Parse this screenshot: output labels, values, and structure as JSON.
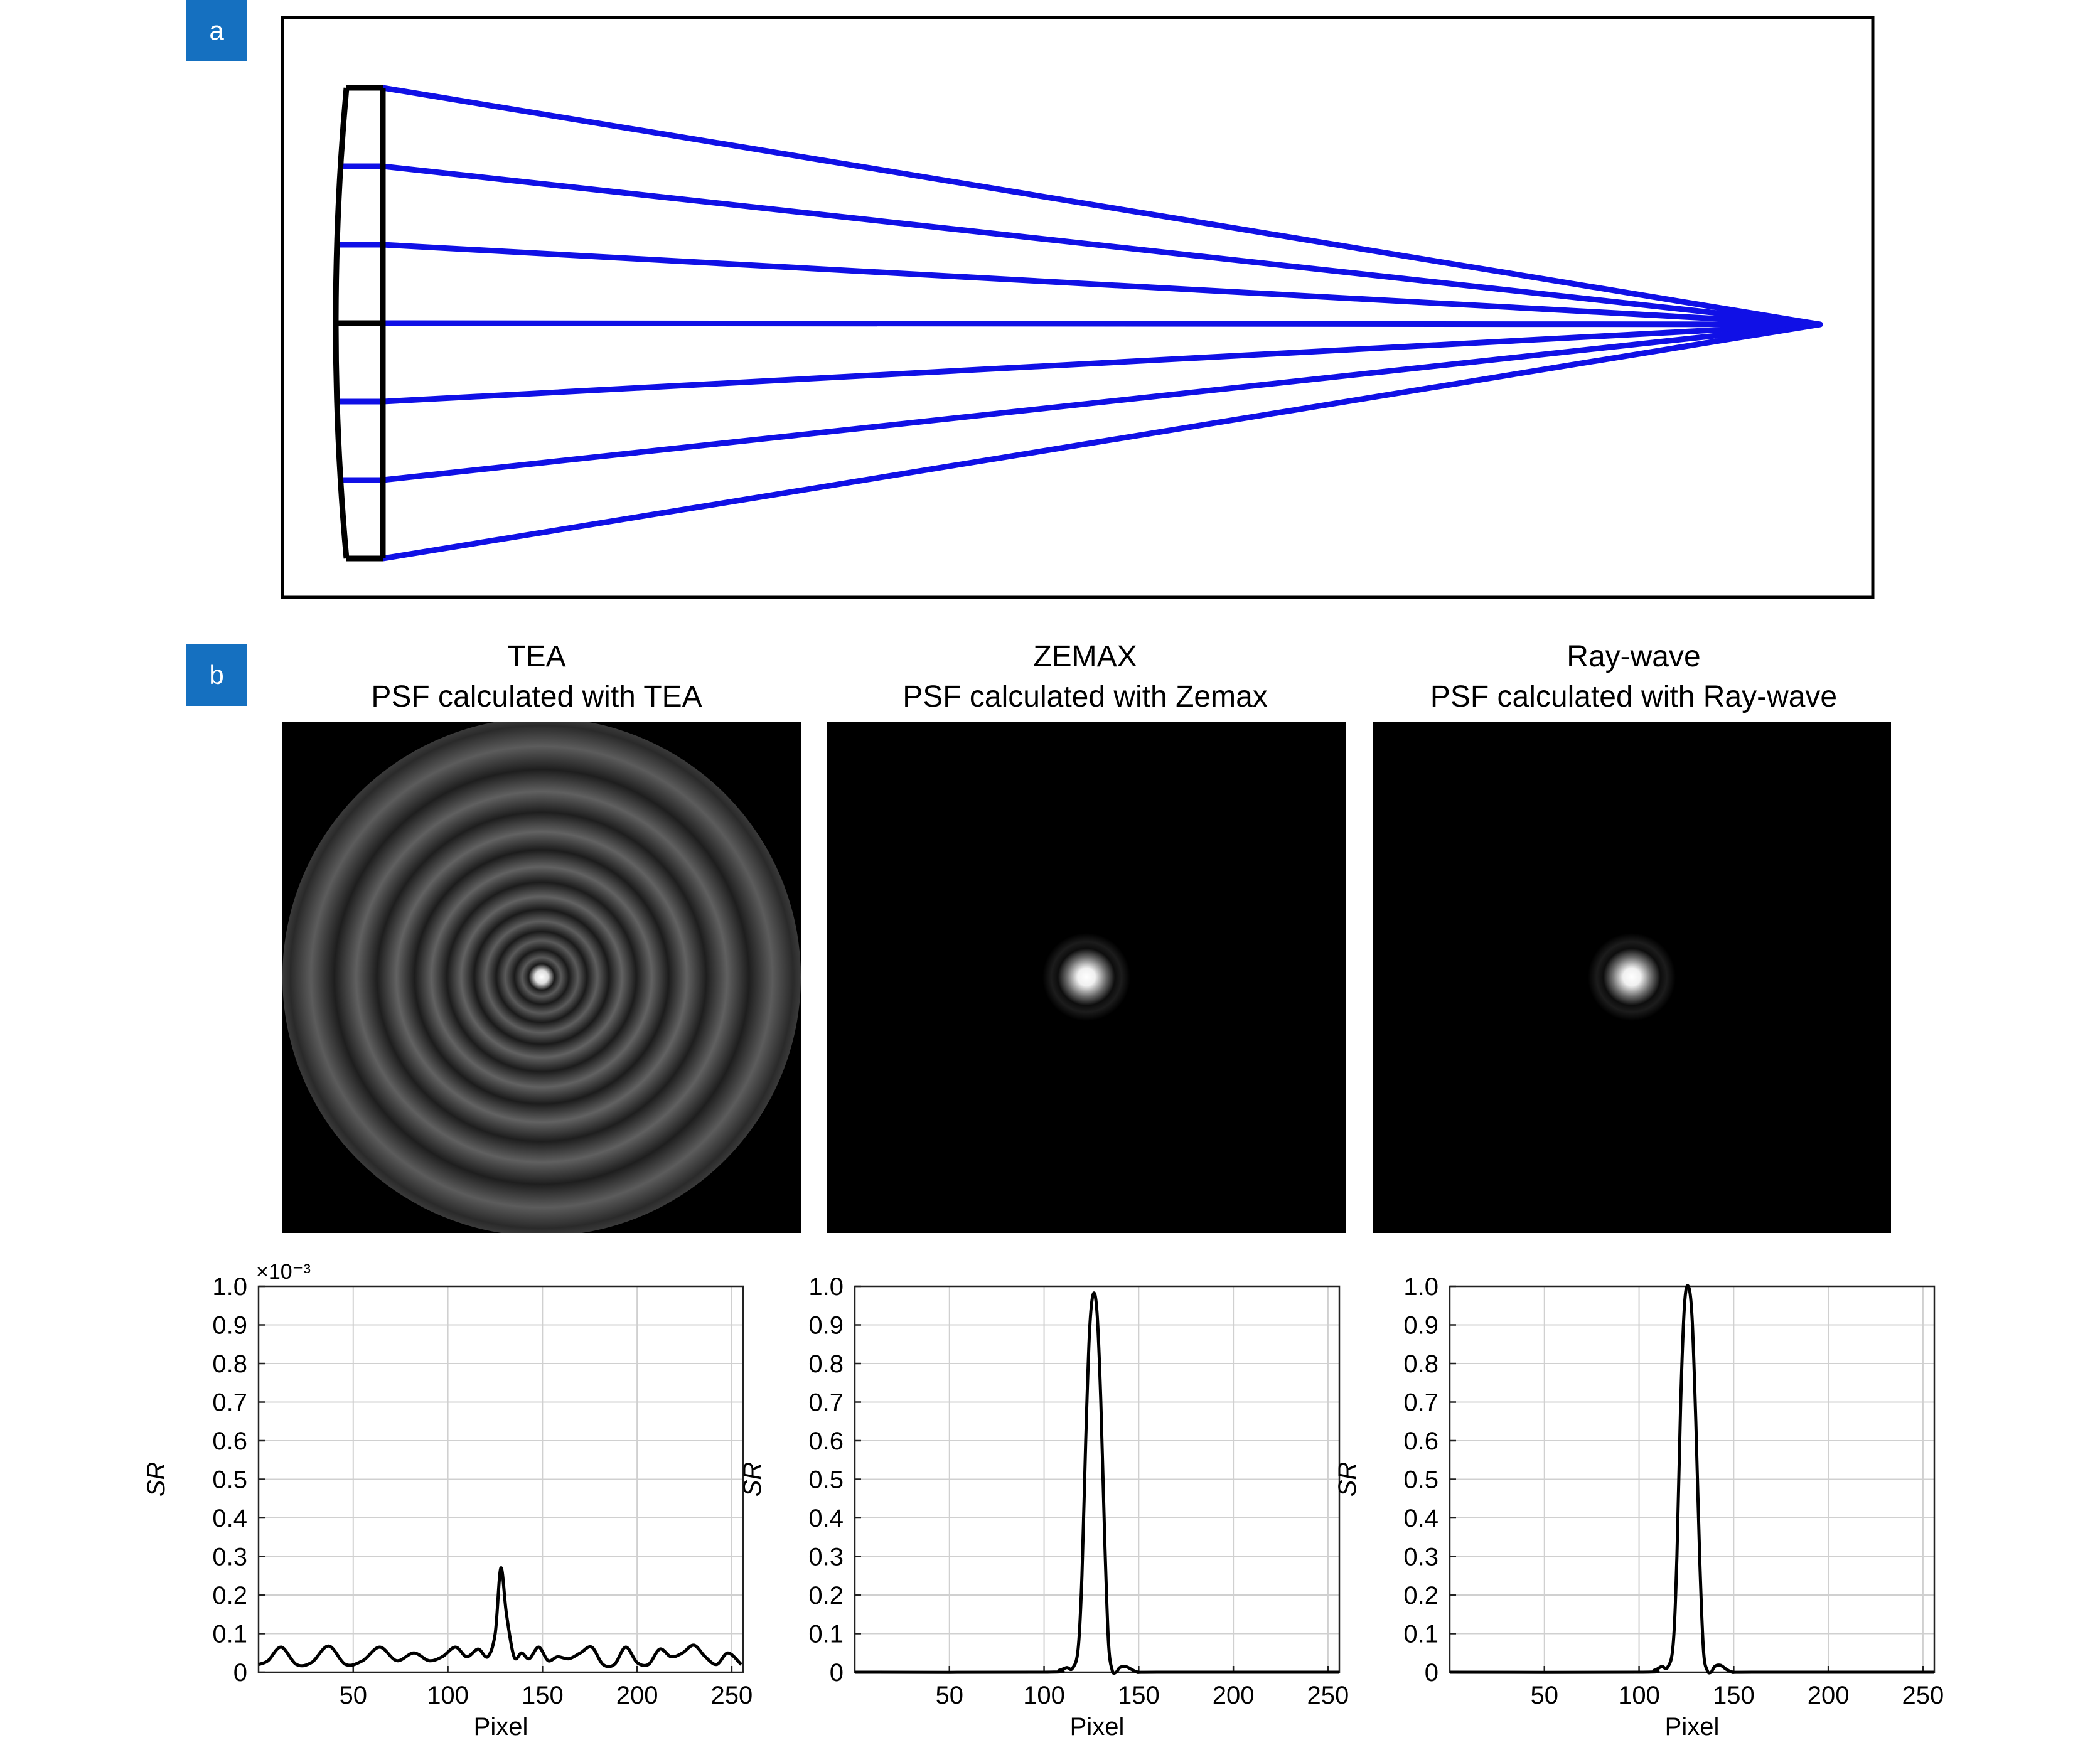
{
  "panels": {
    "a": {
      "badge": "a"
    },
    "b": {
      "badge": "b"
    }
  },
  "columns": [
    {
      "title": "TEA",
      "subtitle": "PSF calculated with TEA",
      "exponent_label": "×10⁻³"
    },
    {
      "title": "ZEMAX",
      "subtitle": "PSF calculated with Zemax"
    },
    {
      "title": "Ray-wave",
      "subtitle": "PSF calculated with Ray-wave"
    }
  ],
  "colors": {
    "badge": "#1570c0",
    "rays": "#1010e6",
    "lens": "#000000",
    "curve": "#000000",
    "grid": "#d0d0d0"
  },
  "chart_data": [
    {
      "type": "line",
      "ylabel": "SR",
      "xlabel": "Pixel",
      "y_multiplier": "×10⁻³",
      "xlim": [
        0,
        256
      ],
      "ylim": [
        0,
        1.0
      ],
      "xticks": [
        50,
        100,
        150,
        200,
        250
      ],
      "yticks": [
        0,
        0.1,
        0.2,
        0.3,
        0.4,
        0.5,
        0.6,
        0.7,
        0.8,
        0.9,
        1.0
      ],
      "ytick_labels": [
        "0",
        "0.1",
        "0.2",
        "0.3",
        "0.4",
        "0.5",
        "0.6",
        "0.7",
        "0.8",
        "0.9",
        "1.0"
      ],
      "grid": true,
      "series": [
        {
          "x": [
            0,
            5,
            12,
            20,
            28,
            37,
            46,
            55,
            64,
            73,
            82,
            90,
            97,
            104,
            110,
            116,
            121,
            125,
            128,
            131,
            135,
            139,
            143,
            148,
            153,
            158,
            164,
            170,
            176,
            182,
            188,
            194,
            200,
            206,
            212,
            218,
            224,
            230,
            236,
            242,
            248,
            255
          ],
          "y": [
            0.02,
            0.03,
            0.065,
            0.02,
            0.025,
            0.068,
            0.02,
            0.03,
            0.065,
            0.03,
            0.05,
            0.03,
            0.04,
            0.065,
            0.04,
            0.06,
            0.04,
            0.1,
            0.27,
            0.15,
            0.04,
            0.05,
            0.035,
            0.065,
            0.03,
            0.04,
            0.035,
            0.05,
            0.065,
            0.02,
            0.02,
            0.065,
            0.025,
            0.02,
            0.06,
            0.04,
            0.05,
            0.07,
            0.04,
            0.02,
            0.05,
            0.02
          ]
        }
      ]
    },
    {
      "type": "line",
      "ylabel": "SR",
      "xlabel": "Pixel",
      "xlim": [
        0,
        256
      ],
      "ylim": [
        0,
        1.0
      ],
      "xticks": [
        50,
        100,
        150,
        200,
        250
      ],
      "yticks": [
        0,
        0.1,
        0.2,
        0.3,
        0.4,
        0.5,
        0.6,
        0.7,
        0.8,
        0.9,
        1.0
      ],
      "ytick_labels": [
        "0",
        "0.1",
        "0.2",
        "0.3",
        "0.4",
        "0.5",
        "0.6",
        "0.7",
        "0.8",
        "0.9",
        "1.0"
      ],
      "grid": true,
      "series": [
        {
          "x": [
            0,
            100,
            108,
            112,
            115,
            118,
            120,
            122,
            124,
            126,
            128,
            130,
            132,
            134,
            136,
            138,
            140,
            143,
            146,
            150,
            160,
            256
          ],
          "y": [
            0,
            0,
            0.005,
            0.012,
            0.01,
            0.06,
            0.25,
            0.6,
            0.88,
            0.98,
            0.93,
            0.7,
            0.35,
            0.08,
            0.005,
            0.0,
            0.012,
            0.015,
            0.008,
            0.0,
            0.0,
            0.0
          ]
        }
      ]
    },
    {
      "type": "line",
      "ylabel": "SR",
      "xlabel": "Pixel",
      "xlim": [
        0,
        256
      ],
      "ylim": [
        0,
        1.0
      ],
      "xticks": [
        50,
        100,
        150,
        200,
        250
      ],
      "yticks": [
        0,
        0.1,
        0.2,
        0.3,
        0.4,
        0.5,
        0.6,
        0.7,
        0.8,
        0.9,
        1.0
      ],
      "ytick_labels": [
        "0",
        "0.1",
        "0.2",
        "0.3",
        "0.4",
        "0.5",
        "0.6",
        "0.7",
        "0.8",
        "0.9",
        "1.0"
      ],
      "grid": true,
      "series": [
        {
          "x": [
            0,
            100,
            108,
            112,
            115,
            118,
            120,
            122,
            124,
            126,
            128,
            130,
            132,
            134,
            136,
            138,
            140,
            143,
            146,
            150,
            160,
            256
          ],
          "y": [
            0,
            0,
            0.005,
            0.015,
            0.012,
            0.07,
            0.3,
            0.7,
            0.95,
            1.0,
            0.92,
            0.65,
            0.3,
            0.06,
            0.005,
            0.0,
            0.015,
            0.018,
            0.008,
            0.0,
            0.0,
            0.0
          ]
        }
      ]
    }
  ]
}
